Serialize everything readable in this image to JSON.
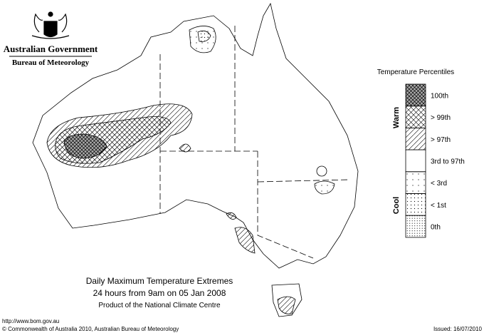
{
  "header": {
    "title": "Australian Government",
    "subtitle": "Bureau of Meteorology"
  },
  "legend": {
    "title": "Temperature Percentiles",
    "items": [
      "100th",
      "> 99th",
      "> 97th",
      "3rd to 97th",
      "< 3rd",
      "< 1st",
      "0th"
    ],
    "warm": "Warm",
    "cool": "Cool"
  },
  "caption": [
    "Daily Maximum Temperature Extremes",
    "24 hours from 9am on 05 Jan 2008",
    "Product of the National Climate Centre"
  ],
  "footer": {
    "url": "http://www.bom.gov.au",
    "copyright": "© Commonwealth of Australia 2010, Australian Bureau of Meteorology",
    "issued": "Issued: 16/07/2010"
  }
}
